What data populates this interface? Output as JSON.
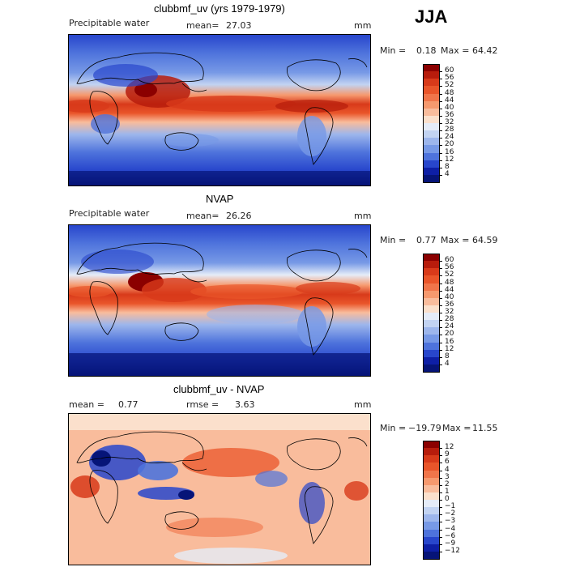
{
  "season": "JJA",
  "panels": [
    {
      "title": "clubbmf_uv (yrs 1979-1979)",
      "left_label": "Precipitable water",
      "center_label": "mean=",
      "center_value": "27.03",
      "right_label": "mm",
      "min_text": "Min =",
      "min_value": "0.18",
      "max_text": "Max =",
      "max_value": "64.42",
      "colorbar_labels": [
        "60",
        "56",
        "52",
        "48",
        "44",
        "40",
        "36",
        "32",
        "28",
        "24",
        "20",
        "16",
        "12",
        "8",
        "4"
      ],
      "colorbar_colors": [
        "#8b0000",
        "#b71c0c",
        "#d83a1a",
        "#e9552a",
        "#f0754a",
        "#f6996e",
        "#f9bc9c",
        "#fbe0cc",
        "#e5ecf8",
        "#c2d3f2",
        "#9db6ec",
        "#7799e6",
        "#4e73dc",
        "#2846cc",
        "#0e1fa6",
        "#061478"
      ]
    },
    {
      "title": "NVAP",
      "left_label": "Precipitable water",
      "center_label": "mean=",
      "center_value": "26.26",
      "right_label": "mm",
      "min_text": "Min =",
      "min_value": "0.77",
      "max_text": "Max =",
      "max_value": "64.59",
      "colorbar_labels": [
        "60",
        "56",
        "52",
        "48",
        "44",
        "40",
        "36",
        "32",
        "28",
        "24",
        "20",
        "16",
        "12",
        "8",
        "4"
      ],
      "colorbar_colors": [
        "#8b0000",
        "#b71c0c",
        "#d83a1a",
        "#e9552a",
        "#f0754a",
        "#f6996e",
        "#f9bc9c",
        "#fbe0cc",
        "#e5ecf8",
        "#c2d3f2",
        "#9db6ec",
        "#7799e6",
        "#4e73dc",
        "#2846cc",
        "#0e1fa6",
        "#061478"
      ]
    },
    {
      "title": "clubbmf_uv - NVAP",
      "left_label": "mean =",
      "left_value": "0.77",
      "center_label": "rmse =",
      "center_value": "3.63",
      "right_label": "mm",
      "min_text": "Min =",
      "min_value": "−19.79",
      "max_text": "Max =",
      "max_value": "11.55",
      "colorbar_labels": [
        "12",
        "9",
        "6",
        "4",
        "3",
        "2",
        "1",
        "0",
        "−1",
        "−2",
        "−3",
        "−4",
        "−6",
        "−9",
        "−12"
      ],
      "colorbar_colors": [
        "#8b0000",
        "#b71c0c",
        "#d83a1a",
        "#e9552a",
        "#f0754a",
        "#f6996e",
        "#f9bc9c",
        "#fbe0cc",
        "#e5ecf8",
        "#c2d3f2",
        "#9db6ec",
        "#7799e6",
        "#4e73dc",
        "#2846cc",
        "#0e1fa6",
        "#061478"
      ]
    }
  ]
}
